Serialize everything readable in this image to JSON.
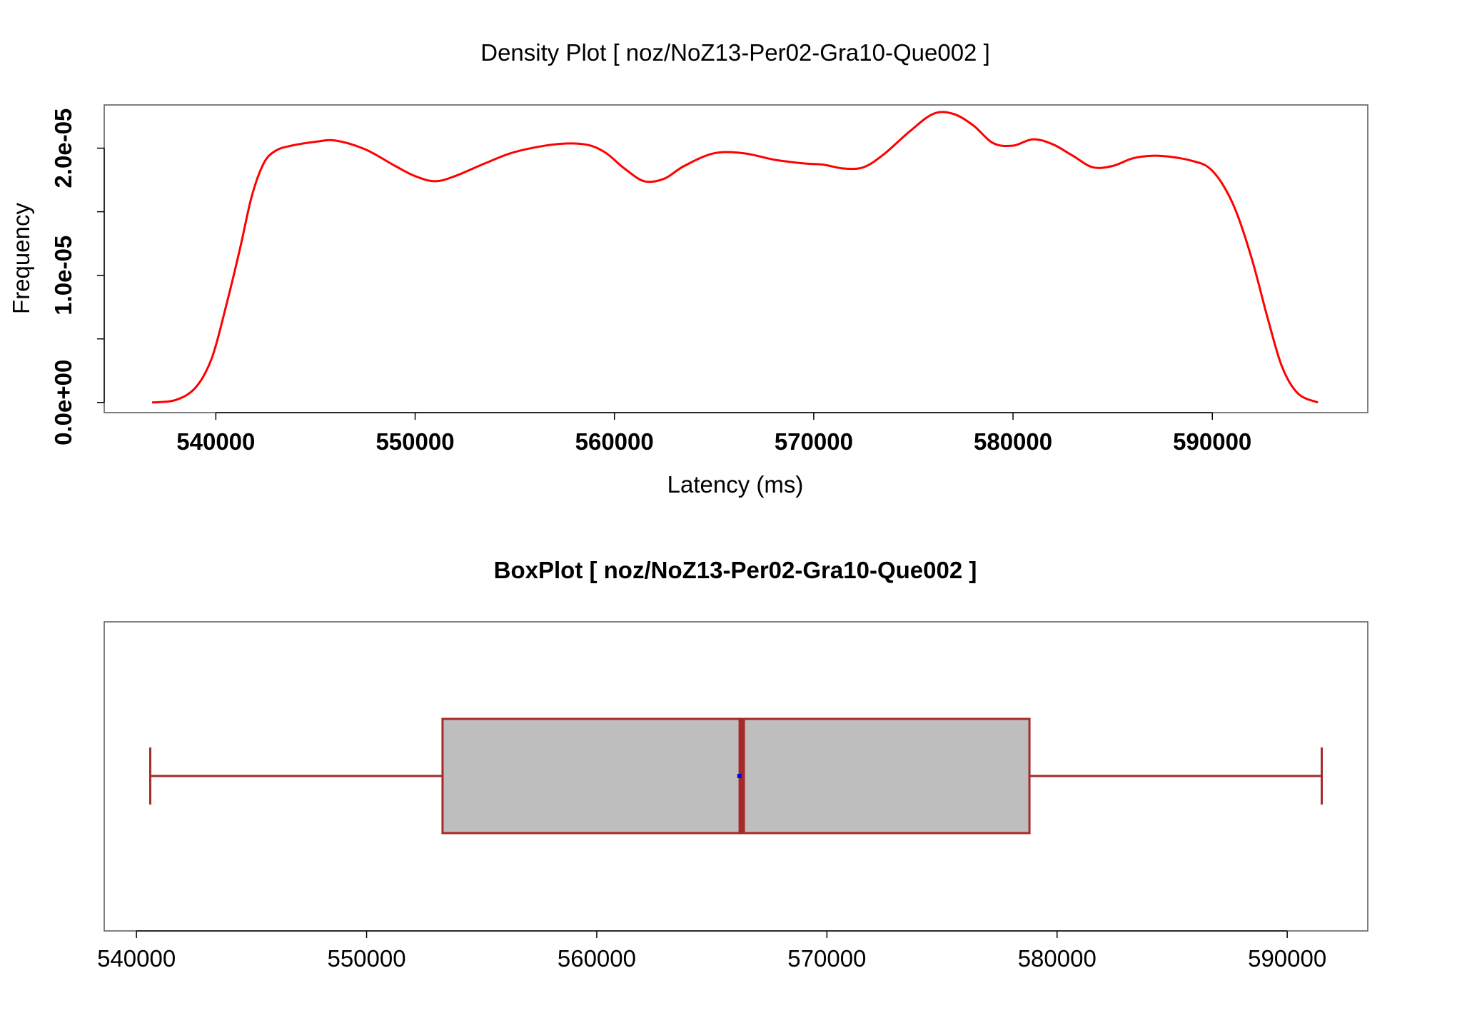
{
  "colors": {
    "density_line": "#ff0000",
    "box_stroke": "#a52a2a",
    "box_fill": "#bebebe",
    "median": "#a52a2a",
    "mean_point": "#0000ff",
    "frame": "#555555"
  },
  "chart_data": [
    {
      "type": "line",
      "title": "Density Plot [ noz/NoZ13-Per02-Gra10-Que002 ]",
      "xlabel": "Latency (ms)",
      "ylabel": "Frequency",
      "xlim": [
        534400,
        597800
      ],
      "ylim": [
        -8e-07,
        2.34e-05
      ],
      "x_ticks": [
        540000,
        550000,
        560000,
        570000,
        580000,
        590000
      ],
      "x_tick_labels": [
        "540000",
        "550000",
        "560000",
        "570000",
        "580000",
        "590000"
      ],
      "y_ticks": [
        0,
        5e-06,
        1e-05,
        1.5e-05,
        2e-05
      ],
      "y_tick_labels": [
        "0.0e+00",
        "",
        "1.0e-05",
        "",
        "2.0e-05"
      ],
      "grid": false,
      "series": [
        {
          "x": [
            536800,
            538000,
            539000,
            539800,
            540500,
            541200,
            541800,
            542400,
            543000,
            543800,
            545000,
            546000,
            547500,
            549000,
            550000,
            551000,
            552000,
            553500,
            555000,
            557000,
            558500,
            559500,
            560500,
            561500,
            562500,
            563500,
            565000,
            566500,
            568000,
            569500,
            570500,
            571500,
            572500,
            573500,
            574800,
            576000,
            577000,
            578000,
            579000,
            580000,
            581000,
            582000,
            583000,
            584000,
            585000,
            586000,
            587000,
            588000,
            589000,
            589800,
            590500,
            591200,
            592000,
            592800,
            593500,
            594300,
            595300
          ],
          "y": [
            0,
            2e-07,
            1.2e-06,
            3.5e-06,
            7.5e-06,
            1.2e-05,
            1.62e-05,
            1.88e-05,
            1.98e-05,
            2.02e-05,
            2.05e-05,
            2.06e-05,
            1.99e-05,
            1.86e-05,
            1.78e-05,
            1.74e-05,
            1.78e-05,
            1.88e-05,
            1.97e-05,
            2.03e-05,
            2.03e-05,
            1.97e-05,
            1.84e-05,
            1.74e-05,
            1.76e-05,
            1.86e-05,
            1.96e-05,
            1.96e-05,
            1.91e-05,
            1.88e-05,
            1.87e-05,
            1.84e-05,
            1.85e-05,
            1.95e-05,
            2.13e-05,
            2.27e-05,
            2.27e-05,
            2.18e-05,
            2.04e-05,
            2.02e-05,
            2.07e-05,
            2.03e-05,
            1.94e-05,
            1.85e-05,
            1.86e-05,
            1.92e-05,
            1.94e-05,
            1.93e-05,
            1.9e-05,
            1.85e-05,
            1.72e-05,
            1.5e-05,
            1.12e-05,
            6.5e-06,
            2.8e-06,
            7e-07,
            0
          ]
        }
      ]
    },
    {
      "type": "box",
      "title": "BoxPlot [ noz/NoZ13-Per02-Gra10-Que002 ]",
      "xlim": [
        538600,
        593500
      ],
      "x_ticks": [
        540000,
        550000,
        560000,
        570000,
        580000,
        590000
      ],
      "x_tick_labels": [
        "540000",
        "550000",
        "560000",
        "570000",
        "580000",
        "590000"
      ],
      "whisker_low": 540600,
      "q1": 553300,
      "median": 566300,
      "q3": 578800,
      "whisker_high": 591500,
      "mean": 566200
    }
  ]
}
